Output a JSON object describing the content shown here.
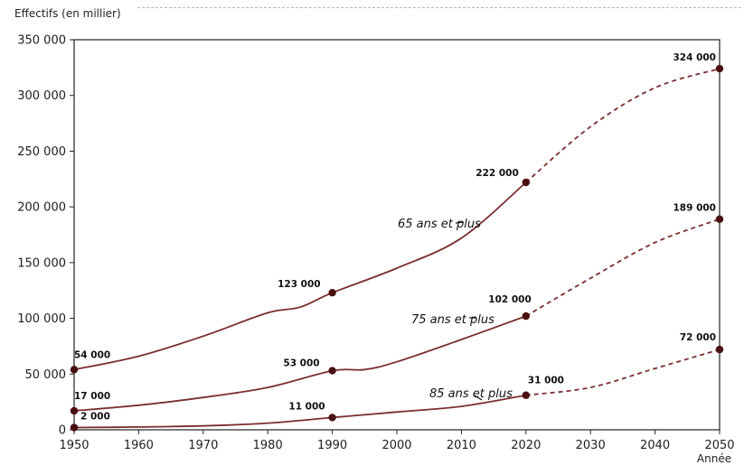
{
  "chart_data": {
    "type": "line",
    "title": "",
    "ylabel": "Effectifs (en millier)",
    "xlabel": "Année",
    "xlim": [
      1950,
      2050
    ],
    "ylim": [
      0,
      350000
    ],
    "x_ticks": [
      "1950",
      "1960",
      "1970",
      "1980",
      "1990",
      "2000",
      "2010",
      "2020",
      "2030",
      "2040",
      "2050"
    ],
    "y_ticks": [
      "0",
      "50 000",
      "100 000",
      "150 000",
      "200 000",
      "250 000",
      "300 000",
      "350 000"
    ],
    "grid": false,
    "projection_style": "dashed",
    "line_color": "#7a2e2e",
    "marker_color": "#4a0f0f",
    "series": [
      {
        "name": "65 ans et plus",
        "solid": [
          [
            1950,
            54000
          ],
          [
            1960,
            66000
          ],
          [
            1970,
            84000
          ],
          [
            1980,
            105000
          ],
          [
            1985,
            110000
          ],
          [
            1990,
            123000
          ],
          [
            2000,
            145000
          ],
          [
            2010,
            172000
          ],
          [
            2020,
            222000
          ]
        ],
        "dashed": [
          [
            2020,
            222000
          ],
          [
            2030,
            272000
          ],
          [
            2040,
            307000
          ],
          [
            2050,
            324000
          ]
        ],
        "markers": [
          {
            "x": 1950,
            "y": 54000,
            "label": "54 000"
          },
          {
            "x": 1990,
            "y": 123000,
            "label": "123 000"
          },
          {
            "x": 2020,
            "y": 222000,
            "label": "222 000"
          },
          {
            "x": 2050,
            "y": 324000,
            "label": "324 000"
          }
        ]
      },
      {
        "name": "75 ans et plus",
        "solid": [
          [
            1950,
            17000
          ],
          [
            1960,
            22000
          ],
          [
            1970,
            29000
          ],
          [
            1980,
            38000
          ],
          [
            1990,
            53000
          ],
          [
            1995,
            54000
          ],
          [
            2000,
            61000
          ],
          [
            2010,
            81000
          ],
          [
            2020,
            102000
          ]
        ],
        "dashed": [
          [
            2020,
            102000
          ],
          [
            2030,
            136000
          ],
          [
            2040,
            168000
          ],
          [
            2050,
            189000
          ]
        ],
        "markers": [
          {
            "x": 1950,
            "y": 17000,
            "label": "17 000"
          },
          {
            "x": 1990,
            "y": 53000,
            "label": "53 000"
          },
          {
            "x": 2020,
            "y": 102000,
            "label": "102 000"
          },
          {
            "x": 2050,
            "y": 189000,
            "label": "189 000"
          }
        ]
      },
      {
        "name": "85 ans et plus",
        "solid": [
          [
            1950,
            2000
          ],
          [
            1960,
            2500
          ],
          [
            1970,
            3500
          ],
          [
            1980,
            6000
          ],
          [
            1990,
            11000
          ],
          [
            2000,
            16000
          ],
          [
            2010,
            21000
          ],
          [
            2020,
            31000
          ]
        ],
        "dashed": [
          [
            2020,
            31000
          ],
          [
            2030,
            38000
          ],
          [
            2040,
            55000
          ],
          [
            2050,
            72000
          ]
        ],
        "markers": [
          {
            "x": 1950,
            "y": 2000,
            "label": "2 000"
          },
          {
            "x": 1990,
            "y": 11000,
            "label": "11 000"
          },
          {
            "x": 2020,
            "y": 31000,
            "label": "31 000"
          },
          {
            "x": 2050,
            "y": 72000,
            "label": "72 000"
          }
        ]
      }
    ]
  }
}
